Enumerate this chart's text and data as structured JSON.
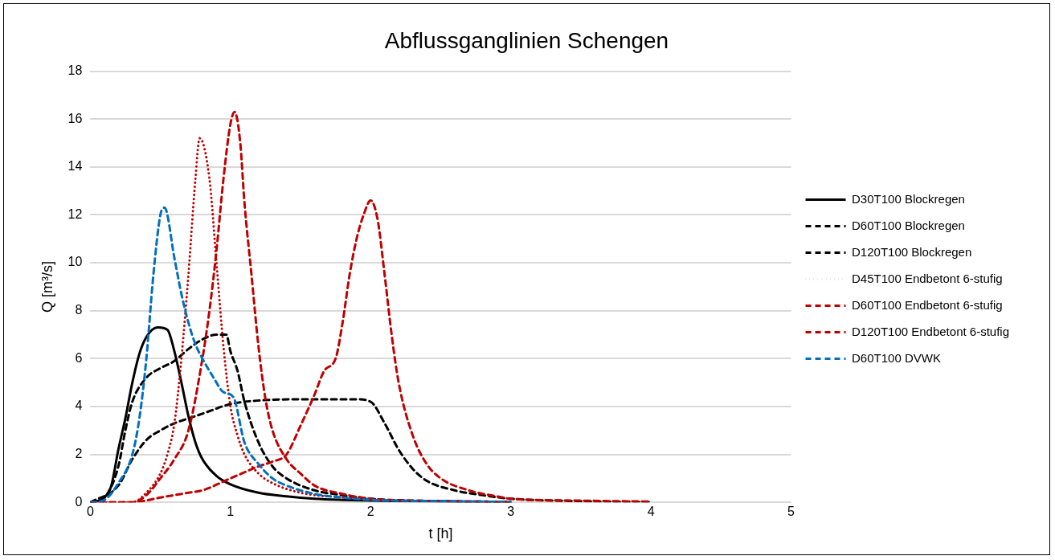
{
  "chart_data": {
    "type": "line",
    "title": "Abflussganglinien Schengen",
    "xlabel": "t [h]",
    "ylabel": "Q [m³/s]",
    "xlim": [
      0,
      5
    ],
    "xticks": [
      0,
      1,
      2,
      3,
      4,
      5
    ],
    "ylim": [
      0,
      18
    ],
    "yticks": [
      0,
      2,
      4,
      6,
      8,
      10,
      12,
      14,
      16,
      18
    ],
    "grid": "y",
    "legend": "right",
    "marker": "none",
    "series": [
      {
        "name": "D30T100 Blockregen",
        "color": "#000000",
        "line_style": "solid",
        "x": [
          0,
          0.1,
          0.15,
          0.2,
          0.25,
          0.3,
          0.35,
          0.4,
          0.48,
          0.55,
          0.6,
          0.65,
          0.7,
          0.75,
          0.8,
          0.9,
          1.0,
          1.2,
          1.4,
          1.6,
          1.8,
          2.0,
          2.5,
          3.0
        ],
        "values": [
          0,
          0.2,
          0.7,
          2.2,
          3.5,
          5,
          6.2,
          6.9,
          7.3,
          7.2,
          6.3,
          5,
          3.6,
          2.5,
          1.8,
          1.1,
          0.75,
          0.4,
          0.25,
          0.15,
          0.1,
          0.07,
          0.03,
          0.01
        ]
      },
      {
        "name": "D60T100 Blockregen",
        "color": "#000000",
        "line_style": "dashed",
        "x": [
          0,
          0.1,
          0.2,
          0.25,
          0.3,
          0.4,
          0.5,
          0.6,
          0.7,
          0.8,
          0.9,
          0.97,
          1.0,
          1.05,
          1.1,
          1.2,
          1.3,
          1.4,
          1.6,
          1.8,
          2.0,
          2.5,
          3.0
        ],
        "values": [
          0,
          0.2,
          1.5,
          3,
          4.2,
          5.2,
          5.6,
          5.9,
          6.4,
          6.8,
          7.0,
          7.0,
          6.3,
          5.5,
          4.2,
          2.5,
          1.5,
          1.0,
          0.5,
          0.3,
          0.15,
          0.05,
          0.02
        ]
      },
      {
        "name": "D120T100 Blockregen",
        "color": "#000000",
        "line_style": "dashed",
        "x": [
          0,
          0.2,
          0.3,
          0.4,
          0.5,
          0.6,
          0.7,
          0.8,
          1.0,
          1.2,
          1.5,
          1.9,
          2.0,
          2.1,
          2.2,
          2.3,
          2.4,
          2.6,
          2.8,
          3.0,
          3.5,
          4.0
        ],
        "values": [
          0,
          0.7,
          1.8,
          2.6,
          3.0,
          3.3,
          3.5,
          3.7,
          4.1,
          4.25,
          4.3,
          4.3,
          4.2,
          3.3,
          2.2,
          1.4,
          0.9,
          0.5,
          0.3,
          0.15,
          0.05,
          0.01
        ]
      },
      {
        "name": "D45T100 Endbetont 6-stufig",
        "color": "#c00000",
        "line_style": "dotted",
        "x": [
          0,
          0.3,
          0.4,
          0.5,
          0.55,
          0.6,
          0.65,
          0.7,
          0.75,
          0.78,
          0.85,
          0.9,
          0.95,
          1.0,
          1.05,
          1.1,
          1.2,
          1.3,
          1.5,
          1.8,
          2.0,
          2.5,
          3.0
        ],
        "values": [
          0,
          0,
          0.4,
          1.2,
          2,
          3.3,
          6,
          9.5,
          13.5,
          15.2,
          13.5,
          10,
          6.5,
          4,
          2.8,
          2.0,
          1.2,
          0.8,
          0.4,
          0.2,
          0.1,
          0.05,
          0.01
        ]
      },
      {
        "name": "D60T100 Endbetont 6-stufig",
        "color": "#c00000",
        "line_style": "dashed",
        "x": [
          0,
          0.3,
          0.4,
          0.5,
          0.6,
          0.7,
          0.8,
          0.85,
          0.9,
          0.95,
          1.0,
          1.03,
          1.07,
          1.1,
          1.15,
          1.2,
          1.25,
          1.3,
          1.4,
          1.5,
          1.6,
          1.8,
          2.0,
          2.5,
          3.0
        ],
        "values": [
          0,
          0,
          0.3,
          1.0,
          1.8,
          3,
          6,
          8,
          10.5,
          13.5,
          15.8,
          16.3,
          15,
          12.5,
          9.5,
          6.5,
          4.3,
          3,
          1.8,
          1.2,
          0.7,
          0.35,
          0.15,
          0.05,
          0.02
        ]
      },
      {
        "name": "D120T100 Endbetont 6-stufig",
        "color": "#c00000",
        "line_style": "dashed",
        "x": [
          0,
          0.3,
          0.5,
          0.7,
          0.8,
          1.0,
          1.2,
          1.3,
          1.4,
          1.5,
          1.6,
          1.67,
          1.75,
          1.8,
          1.85,
          1.9,
          1.95,
          2.0,
          2.05,
          2.1,
          2.15,
          2.2,
          2.3,
          2.4,
          2.5,
          2.7,
          2.9,
          3.0,
          3.5,
          4.0
        ],
        "values": [
          0,
          0,
          0.2,
          0.4,
          0.5,
          1.0,
          1.5,
          1.7,
          2.0,
          3.2,
          4.5,
          5.5,
          6.0,
          7.5,
          9.5,
          11,
          12,
          12.6,
          11.8,
          9.5,
          7,
          5,
          2.8,
          1.6,
          1.0,
          0.5,
          0.25,
          0.15,
          0.07,
          0.03
        ]
      },
      {
        "name": "D60T100 DVWK",
        "color": "#0070c0",
        "line_style": "dashed",
        "x": [
          0,
          0.1,
          0.2,
          0.3,
          0.35,
          0.4,
          0.45,
          0.5,
          0.53,
          0.6,
          0.65,
          0.7,
          0.75,
          0.8,
          0.88,
          0.95,
          1.02,
          1.1,
          1.2,
          1.3,
          1.4,
          1.6,
          1.8,
          2.0,
          2.5,
          3.0
        ],
        "values": [
          0,
          0.1,
          0.8,
          2,
          3.5,
          6,
          9.5,
          12,
          12.3,
          10.2,
          8.7,
          7.5,
          6.6,
          6.0,
          5.2,
          4.6,
          4.4,
          2.5,
          1.6,
          1.0,
          0.7,
          0.35,
          0.2,
          0.1,
          0.05,
          0.01
        ]
      }
    ]
  }
}
